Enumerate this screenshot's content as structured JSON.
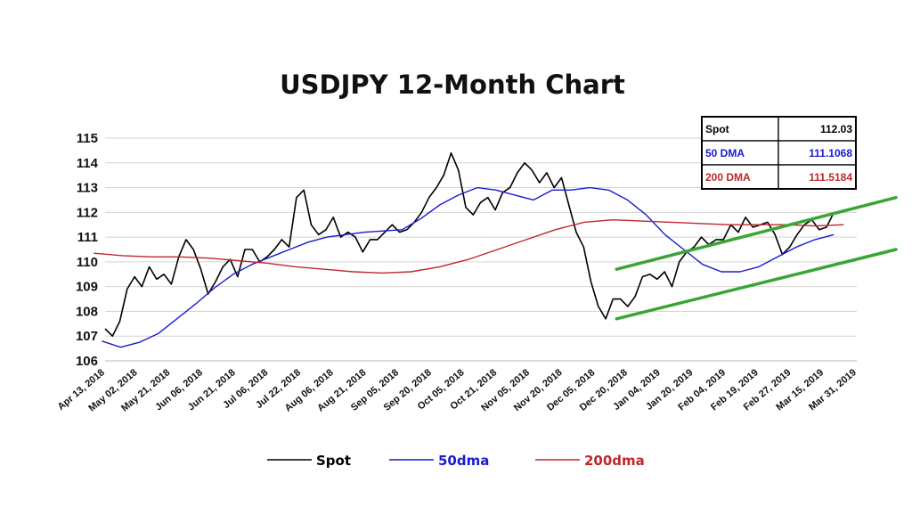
{
  "chart_data": {
    "type": "line",
    "title": "USDJPY 12-Month Chart",
    "ylim": [
      106,
      115
    ],
    "yticks": [
      "106",
      "107",
      "108",
      "109",
      "110",
      "111",
      "112",
      "113",
      "114",
      "115"
    ],
    "xtick_labels": [
      "Apr 13, 2018",
      "May 02, 2018",
      "May 21, 2018",
      "Jun 06, 2018",
      "Jun 21, 2018",
      "Jul 06, 2018",
      "Jul 22, 2018",
      "Aug 06, 2018",
      "Aug 21, 2018",
      "Sep 05, 2018",
      "Sep 20, 2018",
      "Oct 05, 2018",
      "Oct 21, 2018",
      "Nov 05, 2018",
      "Nov 20, 2018",
      "Dec 05, 2018",
      "Dec 20, 2018",
      "Jan 04, 2019",
      "Jan 20, 2019",
      "Feb 04, 2019",
      "Feb 19, 2019",
      "Feb 27, 2019",
      "Mar 15, 2019",
      "Mar 31, 2019"
    ],
    "grid": true,
    "legend": "bottom",
    "series": [
      {
        "name": "Spot",
        "color": "#000000",
        "values": [
          107.3,
          107.0,
          107.6,
          108.9,
          109.4,
          109.0,
          109.8,
          109.3,
          109.5,
          109.1,
          110.2,
          110.9,
          110.5,
          109.7,
          108.7,
          109.2,
          109.8,
          110.1,
          109.4,
          110.5,
          110.5,
          110.0,
          110.2,
          110.5,
          110.9,
          110.6,
          112.6,
          112.9,
          111.5,
          111.1,
          111.3,
          111.8,
          111.0,
          111.2,
          111.0,
          110.4,
          110.9,
          110.9,
          111.2,
          111.5,
          111.2,
          111.3,
          111.6,
          112.0,
          112.6,
          113.0,
          113.5,
          114.4,
          113.7,
          112.2,
          111.9,
          112.4,
          112.6,
          112.1,
          112.8,
          113.0,
          113.6,
          114.0,
          113.7,
          113.2,
          113.6,
          113.0,
          113.4,
          112.3,
          111.2,
          110.6,
          109.2,
          108.2,
          107.7,
          108.5,
          108.5,
          108.2,
          108.6,
          109.4,
          109.5,
          109.3,
          109.6,
          109.0,
          110.0,
          110.4,
          110.6,
          111.0,
          110.7,
          110.9,
          110.9,
          111.5,
          111.2,
          111.8,
          111.4,
          111.5,
          111.6,
          111.1,
          110.3,
          110.6,
          111.1,
          111.5,
          111.7,
          111.3,
          111.4,
          112.0
        ]
      },
      {
        "name": "50dma",
        "color": "#1a1ad0",
        "values": [
          106.8,
          106.55,
          106.75,
          107.1,
          107.7,
          108.3,
          108.95,
          109.5,
          109.9,
          110.2,
          110.5,
          110.8,
          111.0,
          111.1,
          111.2,
          111.25,
          111.3,
          111.75,
          112.3,
          112.7,
          113.0,
          112.9,
          112.7,
          112.5,
          112.9,
          112.9,
          113.0,
          112.9,
          112.5,
          111.9,
          111.1,
          110.5,
          109.9,
          109.6,
          109.6,
          109.8,
          110.2,
          110.6,
          110.9,
          111.1
        ]
      },
      {
        "name": "200dma",
        "color": "#c0262c",
        "values": [
          110.35,
          110.25,
          110.2,
          110.2,
          110.15,
          110.05,
          109.95,
          109.8,
          109.7,
          109.6,
          109.55,
          109.6,
          109.8,
          110.1,
          110.5,
          110.9,
          111.3,
          111.6,
          111.7,
          111.65,
          111.6,
          111.55,
          111.5,
          111.5,
          111.5,
          111.45,
          111.5
        ]
      }
    ],
    "trendlines": [
      {
        "name": "upper",
        "color": "#3aa535",
        "from": [
          107.5,
          109.7
        ],
        "to": [
          112.6,
          112.6
        ]
      },
      {
        "name": "lower",
        "color": "#3aa535",
        "from": [
          107.5,
          107.7
        ],
        "to": [
          112.6,
          110.5
        ]
      }
    ],
    "table": [
      {
        "label": "Spot",
        "value": "112.03",
        "label_color": "#000000",
        "value_color": "#000000"
      },
      {
        "label": "50 DMA",
        "value": "111.1068",
        "label_color": "#1a1ad0",
        "value_color": "#1a1ad0"
      },
      {
        "label": "200 DMA",
        "value": "111.5184",
        "label_color": "#c0262c",
        "value_color": "#c0262c"
      }
    ],
    "legend_entries": [
      {
        "label": "Spot",
        "color": "#000000"
      },
      {
        "label": "50dma",
        "color": "#1a1ad0"
      },
      {
        "label": "200dma",
        "color": "#c0262c"
      }
    ]
  }
}
